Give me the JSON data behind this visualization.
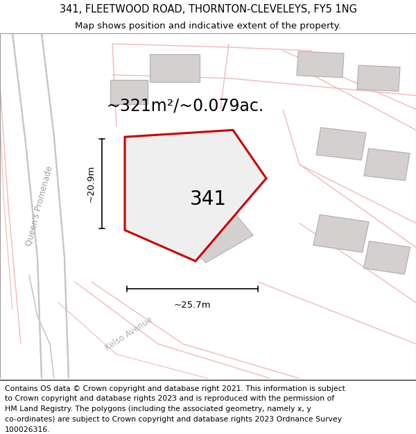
{
  "title_line1": "341, FLEETWOOD ROAD, THORNTON-CLEVELEYS, FY5 1NG",
  "title_line2": "Map shows position and indicative extent of the property.",
  "area_label": "~321m²/~0.079ac.",
  "plot_number": "341",
  "dim_height": "~20.9m",
  "dim_width": "~25.7m",
  "street_label1": "Queen's Promenade",
  "street_label2": "Kelso Avenue",
  "footer_text": "Contains OS data © Crown copyright and database right 2021. This information is subject to Crown copyright and database rights 2023 and is reproduced with the permission of HM Land Registry. The polygons (including the associated geometry, namely x, y co-ordinates) are subject to Crown copyright and database rights 2023 Ordnance Survey 100026316.",
  "map_bg": "#f0efef",
  "plot_fill": "#f0efef",
  "plot_edge": "#cc0000",
  "road_pink": "#f2b8b8",
  "road_gray": "#c8c6c6",
  "building_fill": "#d4d0d0",
  "building_edge": "#b0acac",
  "title_fontsize": 10.5,
  "subtitle_fontsize": 9.5,
  "footer_fontsize": 7.8,
  "area_fontsize": 17,
  "plot_num_fontsize": 20,
  "dim_fontsize": 9.5
}
